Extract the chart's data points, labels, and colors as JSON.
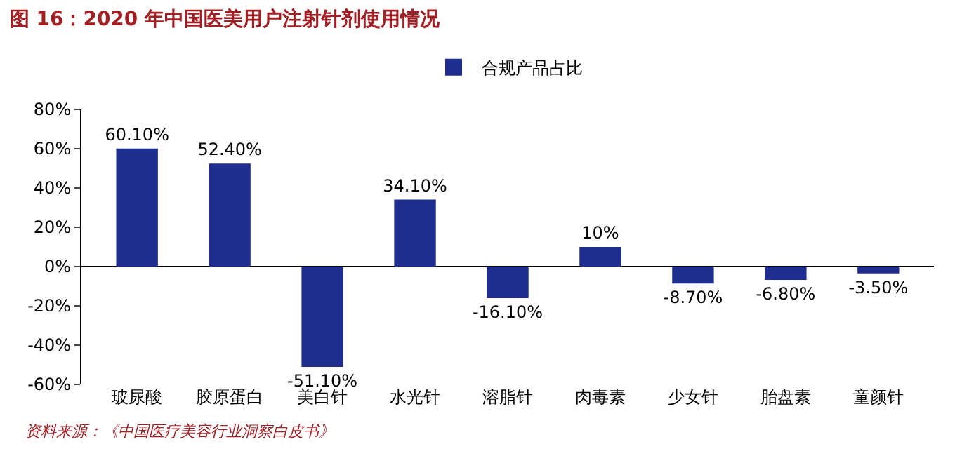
{
  "chart_data": {
    "type": "bar",
    "title": "图 16：2020 年中国医美用户注射针剂使用情况",
    "categories": [
      "玻尿酸",
      "胶原蛋白",
      "美白针",
      "水光针",
      "溶脂针",
      "肉毒素",
      "少女针",
      "胎盘素",
      "童颜针"
    ],
    "series": [
      {
        "name": "合规产品占比",
        "color": "#1f2d8f",
        "values": [
          60.1,
          52.4,
          -51.1,
          34.1,
          -16.1,
          10,
          -8.7,
          -6.8,
          -3.5
        ],
        "value_labels": [
          "60.10%",
          "52.40%",
          "-51.10%",
          "34.10%",
          "-16.10%",
          "10%",
          "-8.70%",
          "-6.80%",
          "-3.50%"
        ]
      }
    ],
    "ylim": [
      -60,
      80
    ],
    "yticks": [
      {
        "value": -60,
        "label": "-60%"
      },
      {
        "value": -40,
        "label": "-40%"
      },
      {
        "value": -20,
        "label": "-20%"
      },
      {
        "value": 0,
        "label": "0%"
      },
      {
        "value": 20,
        "label": "20%"
      },
      {
        "value": 40,
        "label": "40%"
      },
      {
        "value": 60,
        "label": "60%"
      },
      {
        "value": 80,
        "label": "80%"
      }
    ],
    "legend": "top",
    "annotations": [
      "资料来源：《中国医疗美容行业洞察白皮书》"
    ]
  }
}
